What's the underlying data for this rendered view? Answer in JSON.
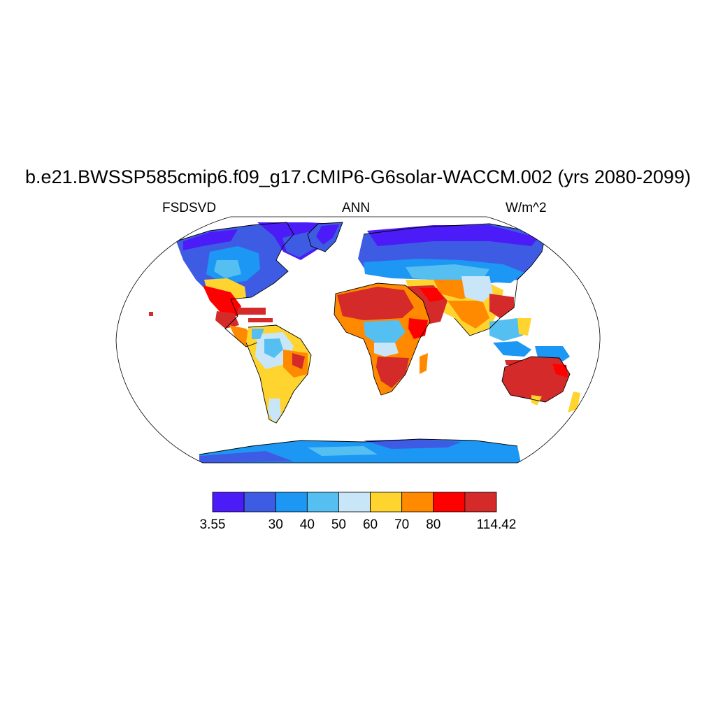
{
  "title": "b.e21.BWSSP585cmip6.f09_g17.CMIP6-G6solar-WACCM.002 (yrs 2080-2099)",
  "variable": "FSDSVD",
  "season": "ANN",
  "units": "W/m^2",
  "colorbar": {
    "colors": [
      "#4b1cf7",
      "#3e5ce3",
      "#1c97f4",
      "#55bff1",
      "#c8e6f8",
      "#ffd42e",
      "#ff8a00",
      "#ff0000",
      "#d42a2a"
    ],
    "labels": [
      "3.55",
      "30",
      "40",
      "50",
      "60",
      "70",
      "80",
      "114.42"
    ],
    "boundaries": [
      3.55,
      20,
      30,
      40,
      50,
      60,
      70,
      80,
      90,
      114.42
    ]
  },
  "map": {
    "projection": "Robinson",
    "ocean_color": "#ffffff",
    "coastline_color": "#000000"
  }
}
